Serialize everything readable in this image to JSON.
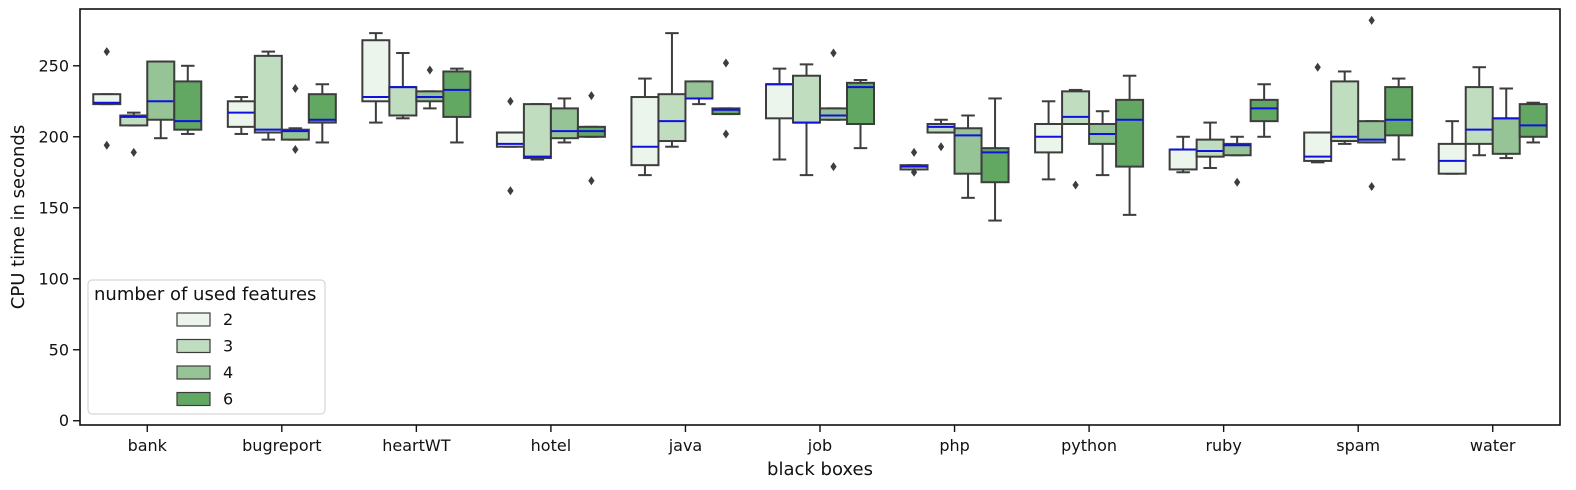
{
  "chart_data": {
    "type": "box",
    "xlabel": "black boxes",
    "ylabel": "CPU time in seconds",
    "ylim": [
      -3,
      290
    ],
    "yticks": [
      0,
      50,
      100,
      150,
      200,
      250
    ],
    "categories": [
      "bank",
      "bugreport",
      "heartWT",
      "hotel",
      "java",
      "job",
      "php",
      "python",
      "ruby",
      "spam",
      "water"
    ],
    "legend": {
      "title": "number of used features",
      "placement": "lower-left",
      "entries": [
        "2",
        "3",
        "4",
        "6"
      ]
    },
    "colors": {
      "2": "#ebf5eb",
      "3": "#c0ddc0",
      "4": "#96c496",
      "6": "#62a862",
      "median": "#1010e0",
      "box_edge": "#3d3d3d"
    },
    "series": [
      {
        "name": "2",
        "boxes": [
          {
            "q1": 223,
            "median": 224,
            "q3": 230,
            "whislo": 223,
            "whishi": 230,
            "fliers": [
              260,
              194
            ]
          },
          {
            "q1": 207,
            "median": 217,
            "q3": 225,
            "whislo": 202,
            "whishi": 228,
            "fliers": []
          },
          {
            "q1": 225,
            "median": 228,
            "q3": 268,
            "whislo": 210,
            "whishi": 273,
            "fliers": []
          },
          {
            "q1": 193,
            "median": 195,
            "q3": 203,
            "whislo": 193,
            "whishi": 203,
            "fliers": [
              225,
              162
            ]
          },
          {
            "q1": 180,
            "median": 193,
            "q3": 228,
            "whislo": 173,
            "whishi": 241,
            "fliers": []
          },
          {
            "q1": 213,
            "median": 237,
            "q3": 237,
            "whislo": 184,
            "whishi": 248,
            "fliers": []
          },
          {
            "q1": 177,
            "median": 179,
            "q3": 180,
            "whislo": 177,
            "whishi": 180,
            "fliers": [
              189,
              175
            ]
          },
          {
            "q1": 189,
            "median": 200,
            "q3": 209,
            "whislo": 170,
            "whishi": 225,
            "fliers": []
          },
          {
            "q1": 177,
            "median": 191,
            "q3": 191,
            "whislo": 175,
            "whishi": 200,
            "fliers": []
          },
          {
            "q1": 183,
            "median": 186,
            "q3": 203,
            "whislo": 182,
            "whishi": 203,
            "fliers": [
              249
            ]
          },
          {
            "q1": 174,
            "median": 183,
            "q3": 195,
            "whislo": 174,
            "whishi": 211,
            "fliers": []
          }
        ]
      },
      {
        "name": "3",
        "boxes": [
          {
            "q1": 208,
            "median": 214,
            "q3": 215,
            "whislo": 208,
            "whishi": 217,
            "fliers": [
              189
            ]
          },
          {
            "q1": 203,
            "median": 205,
            "q3": 257,
            "whislo": 198,
            "whishi": 260,
            "fliers": []
          },
          {
            "q1": 215,
            "median": 235,
            "q3": 235,
            "whislo": 213,
            "whishi": 259,
            "fliers": []
          },
          {
            "q1": 185,
            "median": 186,
            "q3": 223,
            "whislo": 184,
            "whishi": 223,
            "fliers": []
          },
          {
            "q1": 197,
            "median": 211,
            "q3": 230,
            "whislo": 193,
            "whishi": 273,
            "fliers": []
          },
          {
            "q1": 210,
            "median": 210,
            "q3": 243,
            "whislo": 173,
            "whishi": 251,
            "fliers": []
          },
          {
            "q1": 203,
            "median": 207,
            "q3": 209,
            "whislo": 203,
            "whishi": 212,
            "fliers": [
              193
            ]
          },
          {
            "q1": 209,
            "median": 214,
            "q3": 232,
            "whislo": 209,
            "whishi": 233,
            "fliers": [
              166
            ]
          },
          {
            "q1": 186,
            "median": 190,
            "q3": 198,
            "whislo": 178,
            "whishi": 210,
            "fliers": []
          },
          {
            "q1": 197,
            "median": 200,
            "q3": 239,
            "whislo": 195,
            "whishi": 246,
            "fliers": []
          },
          {
            "q1": 195,
            "median": 205,
            "q3": 235,
            "whislo": 187,
            "whishi": 249,
            "fliers": []
          }
        ]
      },
      {
        "name": "4",
        "boxes": [
          {
            "q1": 212,
            "median": 225,
            "q3": 253,
            "whislo": 199,
            "whishi": 253,
            "fliers": []
          },
          {
            "q1": 198,
            "median": 204,
            "q3": 205,
            "whislo": 198,
            "whishi": 206,
            "fliers": [
              234,
              191
            ]
          },
          {
            "q1": 225,
            "median": 228,
            "q3": 232,
            "whislo": 220,
            "whishi": 232,
            "fliers": [
              247
            ]
          },
          {
            "q1": 199,
            "median": 204,
            "q3": 220,
            "whislo": 196,
            "whishi": 227,
            "fliers": []
          },
          {
            "q1": 227,
            "median": 227,
            "q3": 239,
            "whislo": 223,
            "whishi": 239,
            "fliers": []
          },
          {
            "q1": 212,
            "median": 215,
            "q3": 220,
            "whislo": 212,
            "whishi": 220,
            "fliers": [
              259,
              179
            ]
          },
          {
            "q1": 174,
            "median": 201,
            "q3": 206,
            "whislo": 157,
            "whishi": 215,
            "fliers": []
          },
          {
            "q1": 195,
            "median": 202,
            "q3": 209,
            "whislo": 173,
            "whishi": 218,
            "fliers": []
          },
          {
            "q1": 187,
            "median": 194,
            "q3": 195,
            "whislo": 187,
            "whishi": 200,
            "fliers": [
              168
            ]
          },
          {
            "q1": 196,
            "median": 198,
            "q3": 211,
            "whislo": 196,
            "whishi": 211,
            "fliers": [
              282,
              165
            ]
          },
          {
            "q1": 188,
            "median": 213,
            "q3": 213,
            "whislo": 185,
            "whishi": 234,
            "fliers": []
          }
        ]
      },
      {
        "name": "6",
        "boxes": [
          {
            "q1": 205,
            "median": 211,
            "q3": 239,
            "whislo": 202,
            "whishi": 250,
            "fliers": []
          },
          {
            "q1": 210,
            "median": 212,
            "q3": 230,
            "whislo": 196,
            "whishi": 237,
            "fliers": []
          },
          {
            "q1": 214,
            "median": 233,
            "q3": 246,
            "whislo": 196,
            "whishi": 248,
            "fliers": []
          },
          {
            "q1": 200,
            "median": 204,
            "q3": 207,
            "whislo": 200,
            "whishi": 207,
            "fliers": [
              229,
              169
            ]
          },
          {
            "q1": 216,
            "median": 219,
            "q3": 220,
            "whislo": 216,
            "whishi": 220,
            "fliers": [
              252,
              202
            ]
          },
          {
            "q1": 209,
            "median": 235,
            "q3": 238,
            "whislo": 192,
            "whishi": 240,
            "fliers": []
          },
          {
            "q1": 168,
            "median": 189,
            "q3": 192,
            "whislo": 141,
            "whishi": 227,
            "fliers": []
          },
          {
            "q1": 179,
            "median": 212,
            "q3": 226,
            "whislo": 145,
            "whishi": 243,
            "fliers": []
          },
          {
            "q1": 211,
            "median": 220,
            "q3": 226,
            "whislo": 200,
            "whishi": 237,
            "fliers": []
          },
          {
            "q1": 201,
            "median": 212,
            "q3": 235,
            "whislo": 184,
            "whishi": 241,
            "fliers": []
          },
          {
            "q1": 200,
            "median": 208,
            "q3": 223,
            "whislo": 196,
            "whishi": 224,
            "fliers": []
          }
        ]
      }
    ]
  }
}
